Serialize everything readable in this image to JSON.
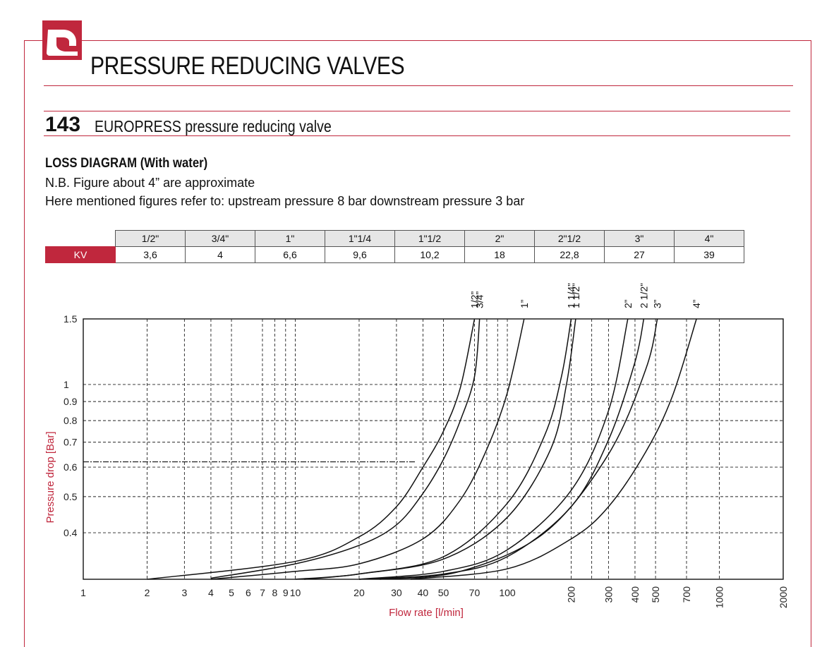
{
  "header": {
    "title": "PRESSURE REDUCING VALVES",
    "product_code": "143",
    "product_name": "EUROPRESS pressure reducing valve"
  },
  "section": {
    "heading": "LOSS DIAGRAM (With water)",
    "note1": "N.B. Figure about 4” are approximate",
    "note2": "Here mentioned figures refer to: upstream pressure 8 bar downstream pressure 3 bar"
  },
  "kv_table": {
    "row_label": "KV",
    "sizes": [
      "1/2\"",
      "3/4\"",
      "1\"",
      "1\"1/4",
      "1\"1/2",
      "2\"",
      "2\"1/2",
      "3\"",
      "4\""
    ],
    "values": [
      "3,6",
      "4",
      "6,6",
      "9,6",
      "10,2",
      "18",
      "22,8",
      "27",
      "39"
    ]
  },
  "colors": {
    "brand": "#c0273d",
    "table_header": "#e6e6e6",
    "grid": "#222222"
  },
  "chart_data": {
    "type": "line",
    "xscale": "log",
    "yscale": "log",
    "xlabel": "Flow rate [l/min]",
    "ylabel": "Pressure drop [Bar]",
    "xlim": [
      1,
      2000
    ],
    "ylim": [
      0.3,
      1.5
    ],
    "x_ticks": [
      1,
      2,
      3,
      4,
      5,
      6,
      7,
      8,
      9,
      10,
      20,
      30,
      40,
      50,
      70,
      100,
      200,
      300,
      400,
      500,
      700,
      1000,
      2000
    ],
    "x_tick_labels": [
      "1",
      "2",
      "3",
      "4",
      "5",
      "6",
      "7",
      "8",
      "9",
      "10",
      "20",
      "30",
      "40",
      "50",
      "70",
      "100",
      "200",
      "300",
      "400",
      "500",
      "700",
      "1000",
      "2000"
    ],
    "x_rotated_from": 200,
    "x_gridlines": [
      2,
      3,
      4,
      5,
      7,
      8,
      9,
      10,
      20,
      30,
      40,
      50,
      70,
      80,
      90,
      100,
      200,
      250,
      300,
      400,
      500,
      700,
      1000
    ],
    "y_ticks": [
      0.4,
      0.5,
      0.6,
      0.7,
      0.8,
      0.9,
      1,
      1.5
    ],
    "y_tick_labels": [
      "0.4",
      "0.5",
      "0.6",
      "0.7",
      "0.8",
      "0.9",
      "1",
      "1.5"
    ],
    "y_gridlines": [
      0.4,
      0.5,
      0.6,
      0.7,
      0.8,
      0.9,
      1
    ],
    "reference_line": {
      "y": 0.62,
      "x_end": 37
    },
    "grid": true,
    "series": [
      {
        "name": "1/2”",
        "x": [
          2,
          10,
          20,
          30,
          40,
          50,
          60,
          70
        ],
        "y": [
          0.3,
          0.335,
          0.39,
          0.47,
          0.6,
          0.75,
          0.98,
          1.5
        ]
      },
      {
        "name": "3/4”",
        "x": [
          4,
          10,
          20,
          30,
          40,
          50,
          60,
          70,
          74
        ],
        "y": [
          0.302,
          0.33,
          0.37,
          0.42,
          0.51,
          0.63,
          0.8,
          1.05,
          1.5
        ]
      },
      {
        "name": "1”",
        "x": [
          4,
          10,
          20,
          40,
          60,
          80,
          100,
          120
        ],
        "y": [
          0.3,
          0.315,
          0.33,
          0.385,
          0.49,
          0.67,
          0.95,
          1.5
        ]
      },
      {
        "name": "1 1/4”",
        "x": [
          10,
          20,
          50,
          100,
          150,
          180,
          200
        ],
        "y": [
          0.3,
          0.31,
          0.345,
          0.48,
          0.73,
          1.05,
          1.5
        ]
      },
      {
        "name": "1 1/2”",
        "x": [
          11,
          20,
          50,
          100,
          160,
          190,
          210
        ],
        "y": [
          0.3,
          0.31,
          0.34,
          0.44,
          0.67,
          1.0,
          1.5
        ]
      },
      {
        "name": "2”",
        "x": [
          20,
          50,
          100,
          200,
          300,
          370
        ],
        "y": [
          0.3,
          0.315,
          0.36,
          0.52,
          0.85,
          1.5
        ]
      },
      {
        "name": "2 1/2”",
        "x": [
          20,
          50,
          100,
          200,
          300,
          400,
          440
        ],
        "y": [
          0.3,
          0.31,
          0.345,
          0.47,
          0.71,
          1.15,
          1.5
        ]
      },
      {
        "name": "3”",
        "x": [
          25,
          60,
          150,
          300,
          450,
          510
        ],
        "y": [
          0.3,
          0.315,
          0.4,
          0.65,
          1.1,
          1.5
        ]
      },
      {
        "name": "4”",
        "x": [
          35,
          100,
          200,
          300,
          450,
          600,
          780
        ],
        "y": [
          0.3,
          0.32,
          0.385,
          0.47,
          0.66,
          0.93,
          1.5
        ]
      }
    ]
  }
}
